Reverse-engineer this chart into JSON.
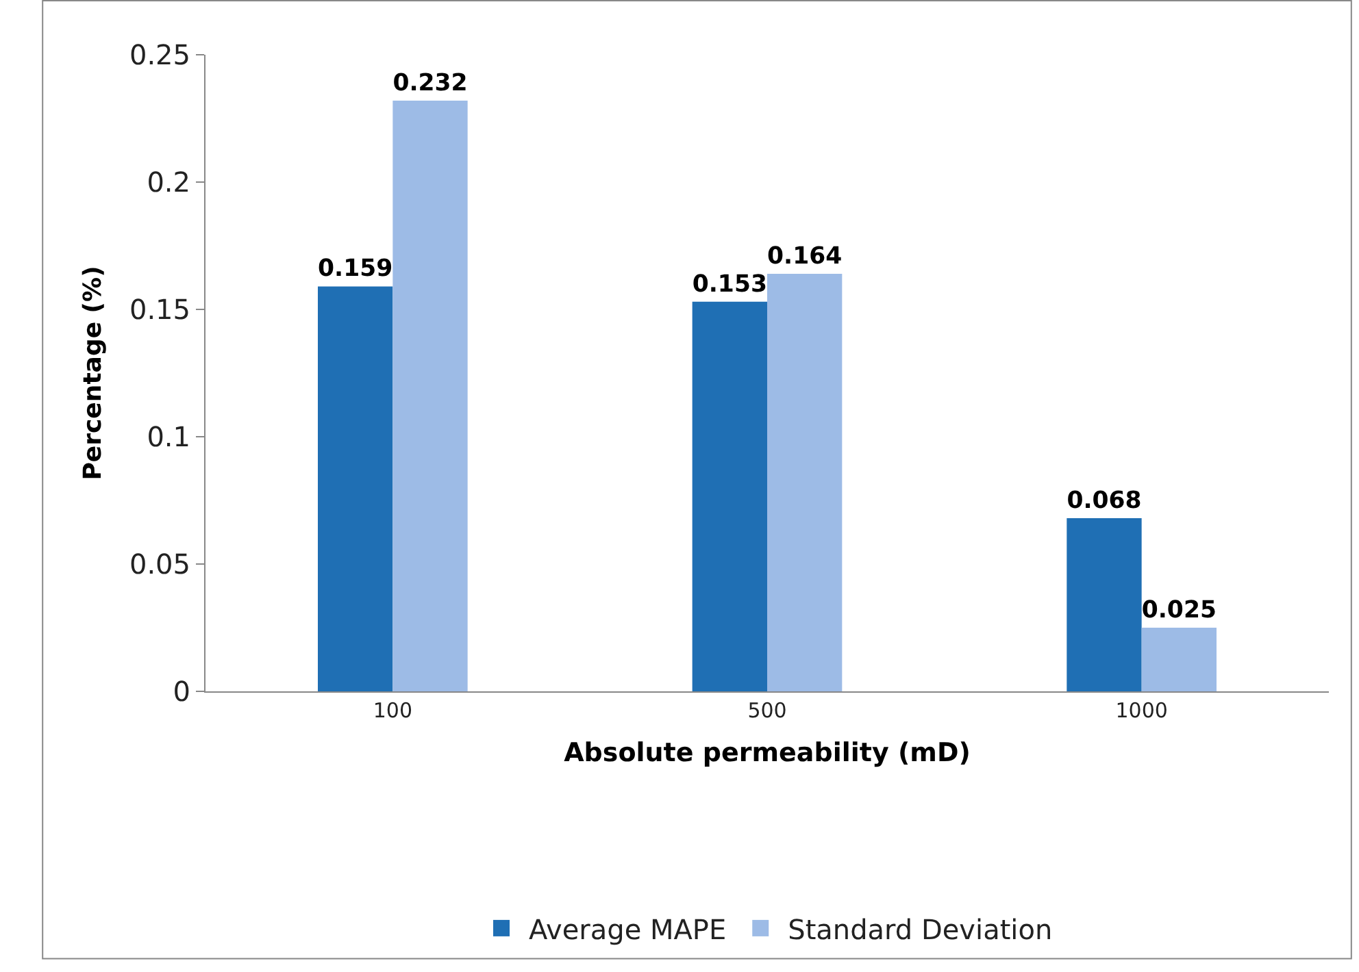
{
  "chart_data": {
    "type": "bar",
    "xlabel": "Absolute permeability (mD)",
    "ylabel": "Percentage (%)",
    "categories": [
      "100",
      "500",
      "1000"
    ],
    "series": [
      {
        "name": "Average MAPE",
        "color": "#1f6fb4",
        "values": [
          0.159,
          0.153,
          0.068
        ]
      },
      {
        "name": "Standard Deviation",
        "color": "#9dbbe6",
        "values": [
          0.232,
          0.164,
          0.025
        ]
      }
    ],
    "ylim": [
      0,
      0.25
    ],
    "yticks": [
      0,
      0.05,
      0.1,
      0.15,
      0.2,
      0.25
    ],
    "data_labels": true,
    "legend": "bottom"
  }
}
